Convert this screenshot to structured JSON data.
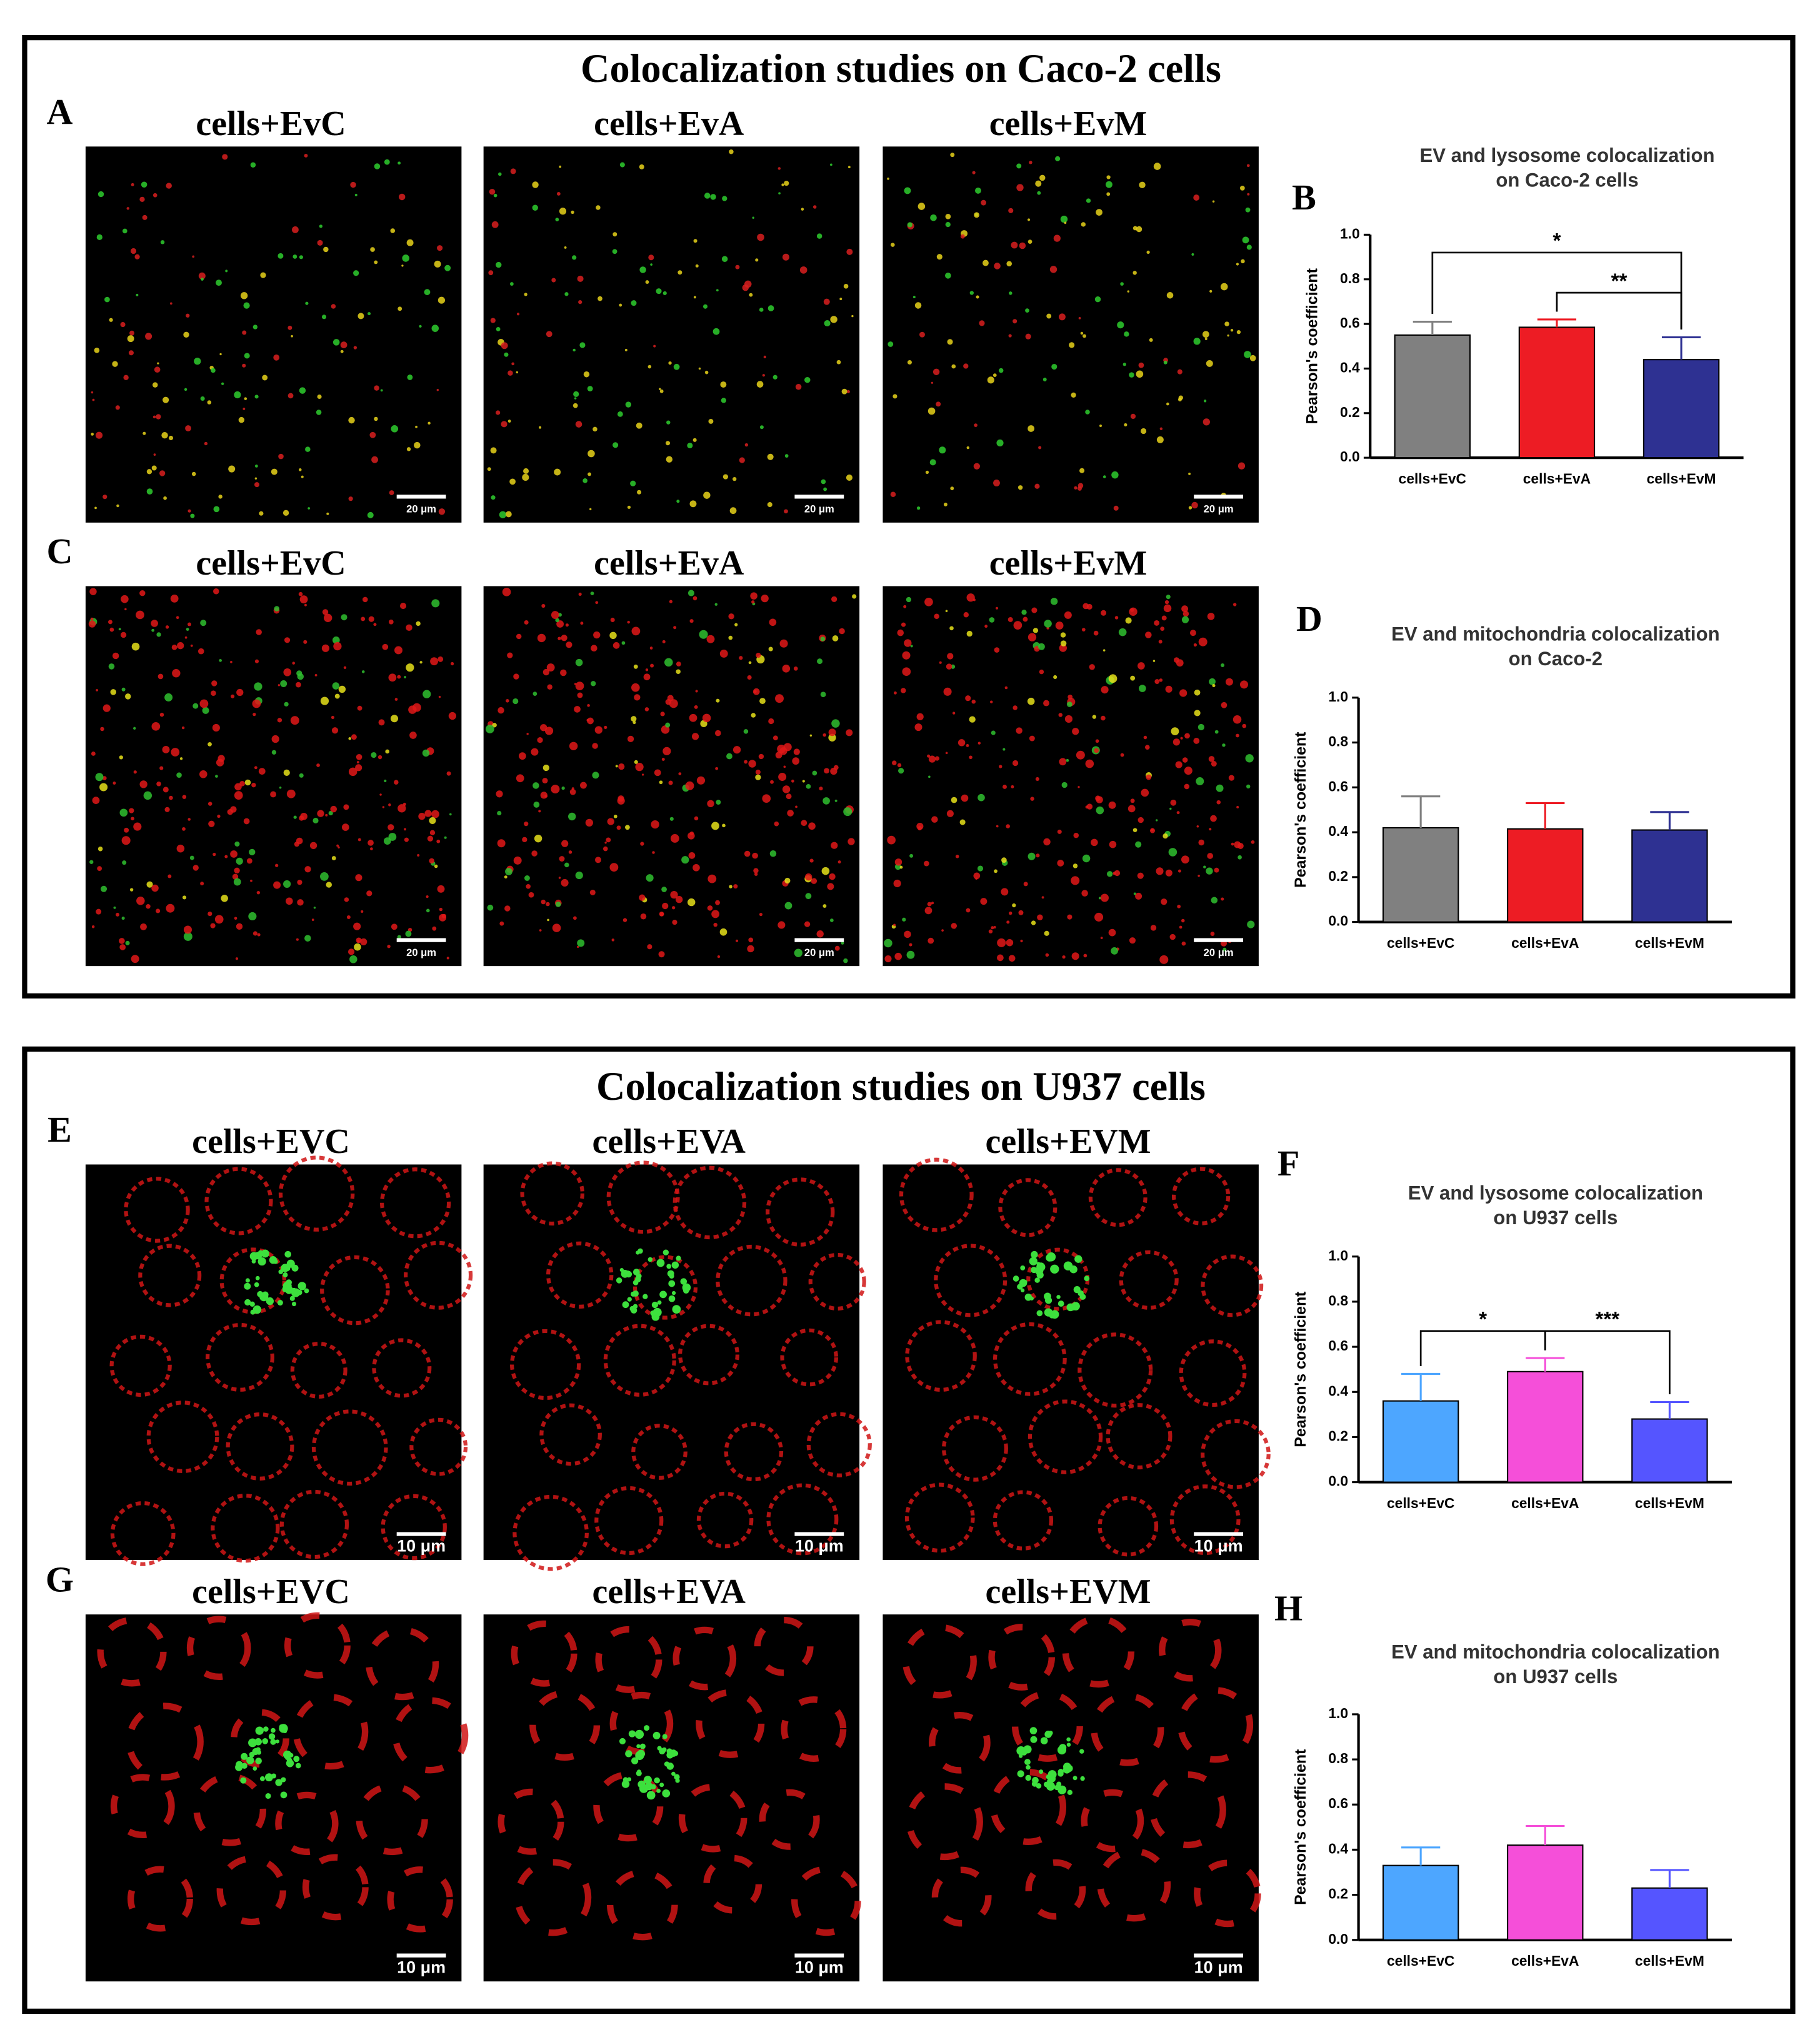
{
  "sections": [
    {
      "title": "Colocalization studies on Caco-2 cells",
      "rows": [
        {
          "letter": "A",
          "labels": [
            "cells+EvC",
            "cells+EvA",
            "cells+EvM"
          ],
          "scale_bars": [
            "20 μm",
            "20 μm",
            "20 μm"
          ]
        },
        {
          "letter": "C",
          "labels": [
            "cells+EvC",
            "cells+EvA",
            "cells+EvM"
          ],
          "scale_bars": [
            "20 μm",
            "20 μm",
            "20 μm"
          ]
        }
      ]
    },
    {
      "title": "Colocalization studies on U937 cells",
      "rows": [
        {
          "letter": "E",
          "labels": [
            "cells+EVC",
            "cells+EVA",
            "cells+EVM"
          ],
          "scale_bars": [
            "10 μm",
            "10 μm",
            "10 μm"
          ]
        },
        {
          "letter": "G",
          "labels": [
            "cells+EVC",
            "cells+EVA",
            "cells+EVM"
          ],
          "scale_bars": [
            "10 μm",
            "10 μm",
            "10 μm"
          ]
        }
      ]
    }
  ],
  "chart_data": [
    {
      "type": "bar",
      "letter": "B",
      "title": [
        "EV and lysosome colocalization",
        "on Caco-2 cells"
      ],
      "ylabel": "Pearson's coefficient",
      "categories": [
        "cells+EvC",
        "cells+EvA",
        "cells+EvM"
      ],
      "values": [
        0.55,
        0.585,
        0.44
      ],
      "errors": [
        0.06,
        0.035,
        0.1
      ],
      "colors": [
        "#808080",
        "#ed1c24",
        "#2e3192"
      ],
      "ylim": [
        0,
        1
      ],
      "yticks": [
        {
          "value": 0,
          "label": "0.0"
        },
        0.2,
        0.4,
        0.6,
        0.8,
        {
          "value": 1,
          "label": "1.0"
        }
      ],
      "significance": [
        {
          "label": "*",
          "pair": [
            0,
            2
          ]
        },
        {
          "label": "**",
          "pair": [
            1,
            2
          ]
        }
      ]
    },
    {
      "type": "bar",
      "letter": "D",
      "title": [
        "EV and mitochondria colocalization",
        "on Caco-2"
      ],
      "ylabel": "Pearson's coefficient",
      "categories": [
        "cells+EvC",
        "cells+EvA",
        "cells+EvM"
      ],
      "values": [
        0.42,
        0.415,
        0.41
      ],
      "errors": [
        0.14,
        0.115,
        0.08
      ],
      "colors": [
        "#808080",
        "#ed1c24",
        "#2e3192"
      ],
      "ylim": [
        0,
        1
      ],
      "yticks": [
        {
          "value": 0,
          "label": "0.0"
        },
        0.2,
        0.4,
        0.6,
        0.8,
        {
          "value": 1,
          "label": "1.0"
        }
      ],
      "significance": []
    },
    {
      "type": "bar",
      "letter": "F",
      "title": [
        "EV and lysosome colocalization",
        "on U937 cells"
      ],
      "ylabel": "Pearson's coefficient",
      "categories": [
        "cells+EvC",
        "cells+EvA",
        "cells+EvM"
      ],
      "values": [
        0.36,
        0.49,
        0.28
      ],
      "errors": [
        0.12,
        0.06,
        0.075
      ],
      "colors": [
        "#4da6ff",
        "#f54fd9",
        "#5555ff"
      ],
      "ylim": [
        0,
        1
      ],
      "yticks": [
        {
          "value": 0,
          "label": "0.0"
        },
        0.2,
        0.4,
        0.6,
        0.8,
        {
          "value": 1,
          "label": "1.0"
        }
      ],
      "significance": [
        {
          "label": "*",
          "pair": [
            0,
            1
          ]
        },
        {
          "label": "***",
          "pair": [
            1,
            2
          ]
        }
      ]
    },
    {
      "type": "bar",
      "letter": "H",
      "title": [
        "EV and mitochondria colocalization",
        "on U937 cells"
      ],
      "ylabel": "Pearson's coefficient",
      "categories": [
        "cells+EvC",
        "cells+EvA",
        "cells+EvM"
      ],
      "values": [
        0.33,
        0.42,
        0.23
      ],
      "errors": [
        0.08,
        0.085,
        0.08
      ],
      "colors": [
        "#4da6ff",
        "#f54fd9",
        "#5555ff"
      ],
      "ylim": [
        0,
        1
      ],
      "yticks": [
        {
          "value": 0,
          "label": "0.0"
        },
        0.2,
        0.4,
        0.6,
        0.8,
        {
          "value": 1,
          "label": "1.0"
        }
      ],
      "significance": []
    }
  ]
}
